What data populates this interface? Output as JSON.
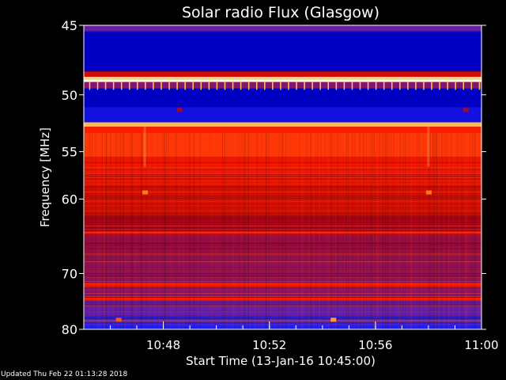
{
  "chart_data": {
    "type": "heatmap",
    "title": "Solar radio Flux (Glasgow)",
    "xlabel": "Start Time (13-Jan-16 10:45:00)",
    "ylabel": "Frequency [MHz]",
    "x_range_minutes_after_10_45": [
      0,
      15
    ],
    "x_ticks": [
      {
        "label": "10:48",
        "minute": 3
      },
      {
        "label": "10:52",
        "minute": 7
      },
      {
        "label": "10:56",
        "minute": 11
      },
      {
        "label": "11:00",
        "minute": 15
      }
    ],
    "y_range_mhz": [
      45,
      80
    ],
    "y_ticks": [
      {
        "label": "45",
        "mhz": 45
      },
      {
        "label": "50",
        "mhz": 50
      },
      {
        "label": "55",
        "mhz": 55
      },
      {
        "label": "60",
        "mhz": 60
      },
      {
        "label": "70",
        "mhz": 70
      },
      {
        "label": "80",
        "mhz": 80
      }
    ],
    "y_scale": "inverse",
    "colormap": [
      "#000000",
      "#0000c8",
      "#2828ff",
      "#7a1a8a",
      "#b40000",
      "#ff1e00",
      "#ff7a1e",
      "#ffc864",
      "#ffffe0"
    ],
    "bands": [
      {
        "from_mhz": 45.0,
        "to_mhz": 45.4,
        "level": 0.35
      },
      {
        "from_mhz": 45.4,
        "to_mhz": 48.2,
        "level": 0.12
      },
      {
        "from_mhz": 48.2,
        "to_mhz": 48.6,
        "level": 0.55
      },
      {
        "from_mhz": 48.6,
        "to_mhz": 48.8,
        "level": 0.9
      },
      {
        "from_mhz": 48.8,
        "to_mhz": 49.0,
        "level": 1.0
      },
      {
        "from_mhz": 49.0,
        "to_mhz": 49.5,
        "level": 0.4
      },
      {
        "from_mhz": 49.5,
        "to_mhz": 51.0,
        "level": 0.12
      },
      {
        "from_mhz": 51.0,
        "to_mhz": 52.3,
        "level": 0.18
      },
      {
        "from_mhz": 52.3,
        "to_mhz": 52.7,
        "level": 0.85
      },
      {
        "from_mhz": 52.7,
        "to_mhz": 53.2,
        "level": 0.62
      },
      {
        "from_mhz": 53.2,
        "to_mhz": 55.5,
        "level": 0.66
      },
      {
        "from_mhz": 55.5,
        "to_mhz": 58.5,
        "level": 0.6
      },
      {
        "from_mhz": 58.5,
        "to_mhz": 62.0,
        "level": 0.55
      },
      {
        "from_mhz": 62.0,
        "to_mhz": 64.0,
        "level": 0.48
      },
      {
        "from_mhz": 64.0,
        "to_mhz": 64.4,
        "level": 0.62
      },
      {
        "from_mhz": 64.4,
        "to_mhz": 67.5,
        "level": 0.44
      },
      {
        "from_mhz": 67.5,
        "to_mhz": 71.5,
        "level": 0.42
      },
      {
        "from_mhz": 71.5,
        "to_mhz": 72.3,
        "level": 0.6
      },
      {
        "from_mhz": 72.3,
        "to_mhz": 74.0,
        "level": 0.4
      },
      {
        "from_mhz": 74.0,
        "to_mhz": 74.5,
        "level": 0.62
      },
      {
        "from_mhz": 74.5,
        "to_mhz": 77.5,
        "level": 0.34
      },
      {
        "from_mhz": 77.5,
        "to_mhz": 80.0,
        "level": 0.22
      }
    ],
    "spots": [
      {
        "minute": 2.3,
        "mhz": 59.2,
        "level": 0.75
      },
      {
        "minute": 13.0,
        "mhz": 59.2,
        "level": 0.75
      },
      {
        "minute": 3.6,
        "mhz": 51.2,
        "level": 0.45
      },
      {
        "minute": 14.4,
        "mhz": 51.2,
        "level": 0.45
      },
      {
        "minute": 9.4,
        "mhz": 78.0,
        "level": 0.8
      },
      {
        "minute": 1.3,
        "mhz": 78.0,
        "level": 0.7
      }
    ]
  },
  "footer": {
    "updated": "Updated Thu Feb 22 01:13:28 2018"
  }
}
